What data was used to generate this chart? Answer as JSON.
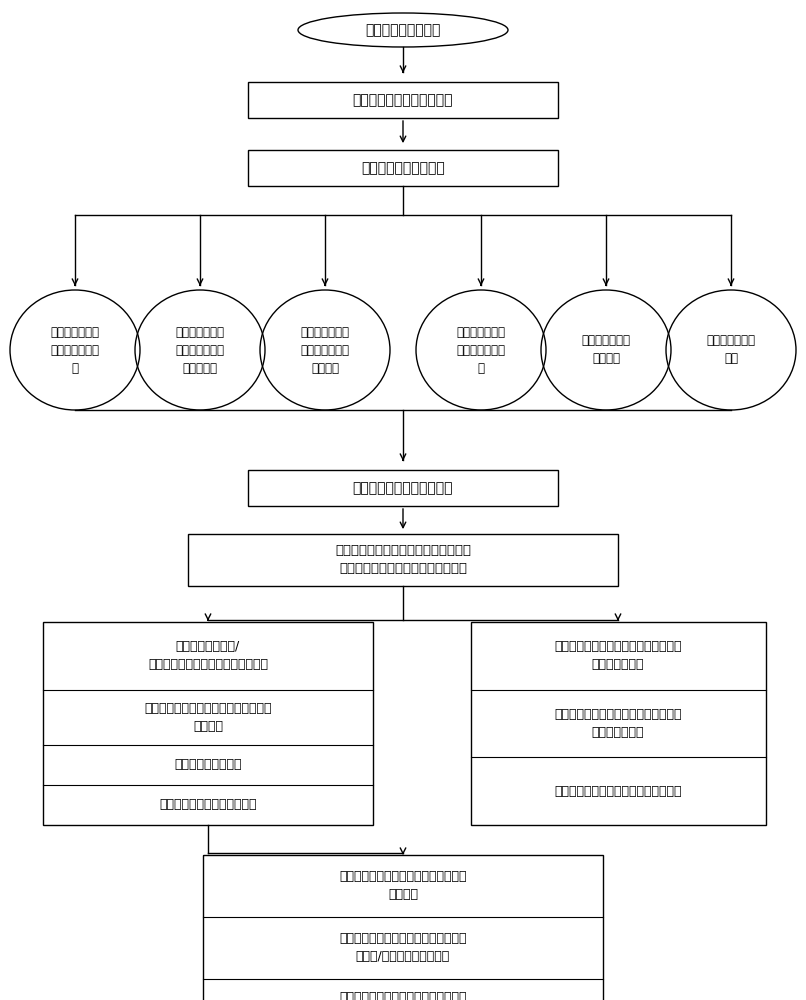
{
  "bg_color": "#ffffff",
  "line_color": "#000000",
  "text_color": "#000000",
  "nodes": {
    "start_text": "用户佩戴可穿戴设备",
    "box1_text": "确定可穿戴设备的工作模式",
    "box2_text": "获取用户安全评估参数",
    "circle_texts": [
      "用户是否处于预\n设的危险地点集\n合",
      "用户是否偏离预\n设的出行路线以\n及偏离程度",
      "用户在预定时间\n内是否处于安全\n地点集合",
      "用户是否按照预\n定的交通方式出\n行",
      "用户的生理指标\n是否微弱",
      "用户的情绪是否\n异常"
    ],
    "box3_text": "提醒用户进行个人安全确认",
    "box4_text": "用户通过安全密码、安全图形、安全动\n作中的一者或多者进行个人安全确认",
    "left_rows": [
      "在预设时间之内和/\n或预设提醒次数之后未进行安全确认",
      "用户输入了错误的安全确认并且超过了\n预定次数",
      "用户的生理指标微弱",
      "用户的可穿戴设备非正常摘除"
    ],
    "right_rows": [
      "用户在可穿戴设备上输入的密码与预设\n的安全密码相符",
      "用户在可穿戴设备上输入的图形与预设\n的安全图形相符",
      "用户做出的动作与预设的安全动作相符"
    ],
    "bottom_rows": [
      "向预设的联系人集合中的联系人员发出\n安全警报",
      "根据用户的地理位置向用户附近的公安\n机关和/或医院发出报警通知",
      "将用户所处的时间和地理位置上传至云\n端"
    ]
  }
}
